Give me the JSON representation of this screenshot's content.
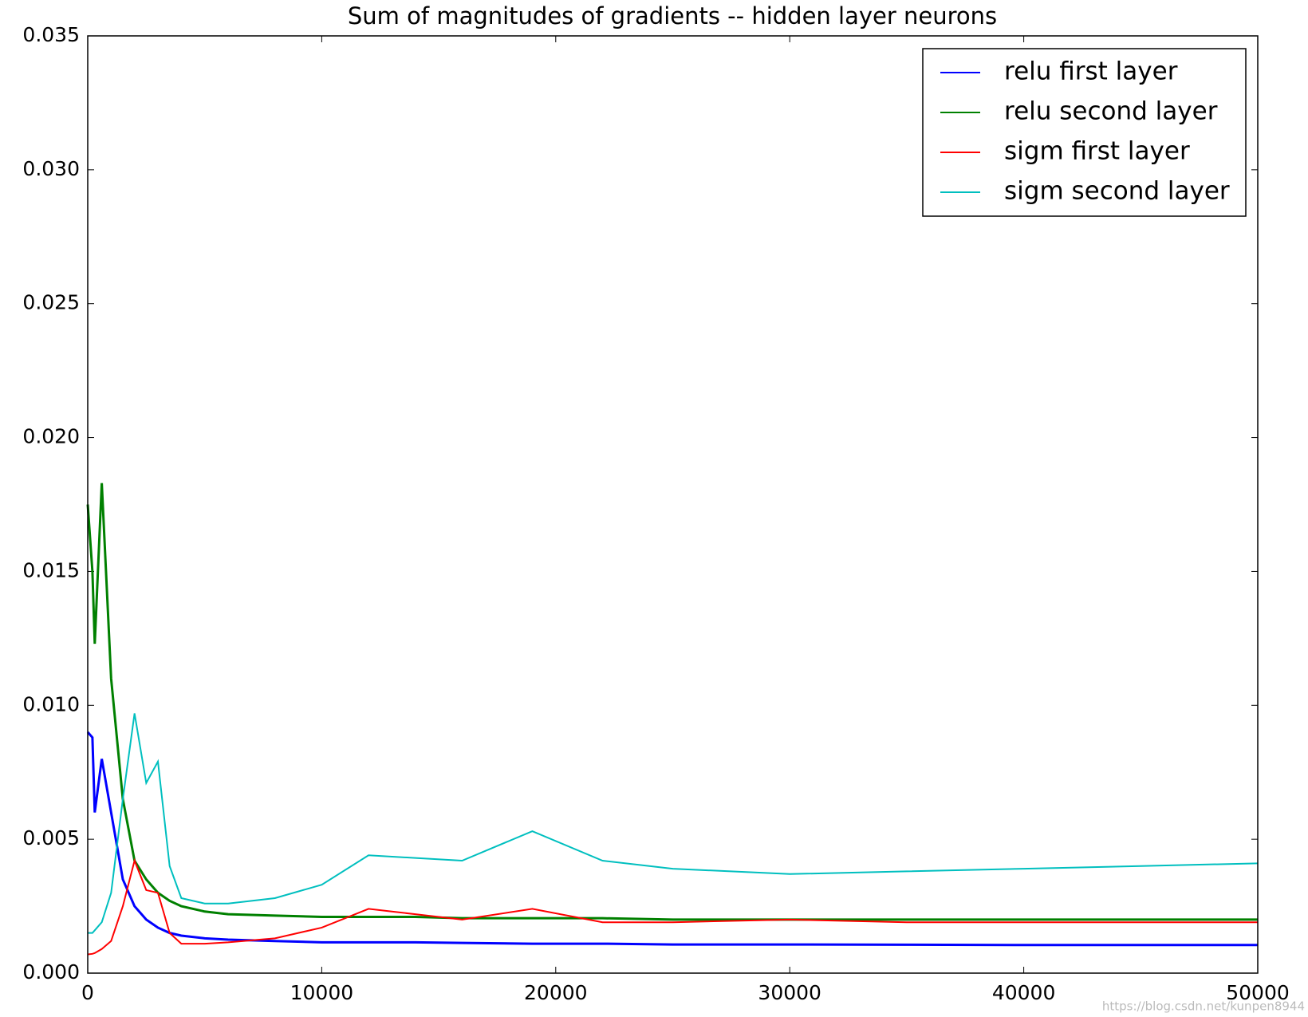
{
  "chart_data": {
    "type": "line",
    "title": "Sum of magnitudes of gradients -- hidden layer neurons",
    "x": [
      0,
      200,
      300,
      600,
      1000,
      1500,
      2000,
      2500,
      3000,
      3500,
      4000,
      5000,
      6000,
      8000,
      10000,
      12000,
      14000,
      16000,
      19000,
      22000,
      25000,
      30000,
      35000,
      40000,
      45000,
      50000
    ],
    "series": [
      {
        "name": "relu first layer",
        "color": "#0000ff",
        "values": [
          0.009,
          0.0088,
          0.006,
          0.008,
          0.006,
          0.0035,
          0.0025,
          0.002,
          0.0017,
          0.0015,
          0.0014,
          0.0013,
          0.00125,
          0.0012,
          0.00115,
          0.00115,
          0.00115,
          0.00113,
          0.0011,
          0.0011,
          0.00107,
          0.00107,
          0.00106,
          0.00105,
          0.00105,
          0.00105
        ]
      },
      {
        "name": "relu second layer",
        "color": "#008000",
        "values": [
          0.0175,
          0.015,
          0.0123,
          0.0183,
          0.011,
          0.0065,
          0.0042,
          0.0035,
          0.003,
          0.0027,
          0.0025,
          0.0023,
          0.0022,
          0.00215,
          0.0021,
          0.0021,
          0.0021,
          0.00205,
          0.00205,
          0.00205,
          0.002,
          0.002,
          0.002,
          0.002,
          0.002,
          0.002
        ]
      },
      {
        "name": "sigm first layer",
        "color": "#ff0000",
        "values": [
          0.0007,
          0.00072,
          0.00075,
          0.0009,
          0.0012,
          0.0025,
          0.0042,
          0.0031,
          0.003,
          0.0015,
          0.0011,
          0.0011,
          0.00115,
          0.0013,
          0.0017,
          0.0024,
          0.0022,
          0.002,
          0.0024,
          0.0019,
          0.0019,
          0.002,
          0.0019,
          0.0019,
          0.0019,
          0.0019
        ]
      },
      {
        "name": "sigm second layer",
        "color": "#00bfbf",
        "values": [
          0.0015,
          0.0015,
          0.0016,
          0.0019,
          0.003,
          0.0065,
          0.0097,
          0.0071,
          0.0079,
          0.004,
          0.0028,
          0.0026,
          0.0026,
          0.0028,
          0.0033,
          0.0044,
          0.0043,
          0.0042,
          0.0053,
          0.0042,
          0.0039,
          0.0037,
          0.0038,
          0.0039,
          0.004,
          0.0041
        ]
      }
    ],
    "xlim": [
      0,
      50000
    ],
    "xticks": [
      0,
      10000,
      20000,
      30000,
      40000,
      50000
    ],
    "ylim": [
      0,
      0.035
    ],
    "yticks": [
      {
        "value": 0,
        "label": "0.000"
      },
      {
        "value": 0.005,
        "label": "0.005"
      },
      {
        "value": 0.01,
        "label": "0.010"
      },
      {
        "value": 0.015,
        "label": "0.015"
      },
      {
        "value": 0.02,
        "label": "0.020"
      },
      {
        "value": 0.025,
        "label": "0.025"
      },
      {
        "value": 0.03,
        "label": "0.030"
      },
      {
        "value": 0.035,
        "label": "0.035"
      }
    ],
    "legend": "upper right",
    "watermark": "https://blog.csdn.net/kunpen8944"
  }
}
